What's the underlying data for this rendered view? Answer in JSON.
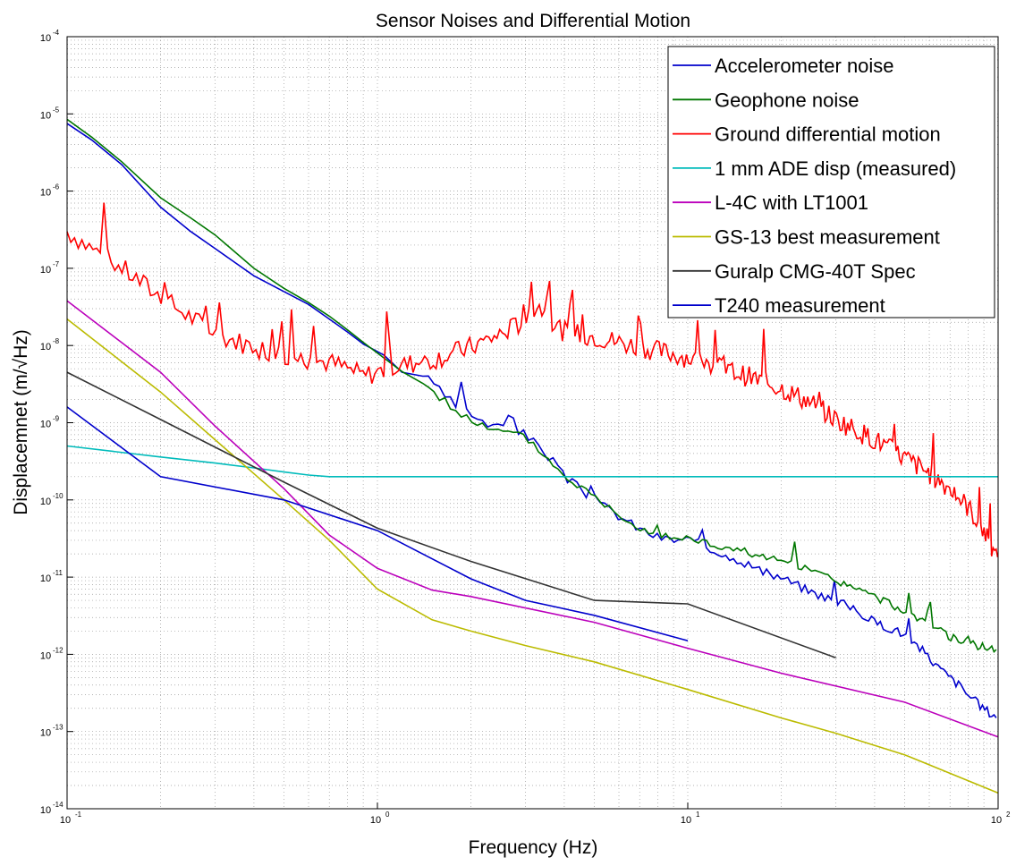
{
  "chart_data": {
    "type": "line",
    "title": "Sensor Noises and Differential Motion",
    "xlabel": "Frequency (Hz)",
    "ylabel": "Displacemnet (m/√Hz)",
    "xscale": "log",
    "yscale": "log",
    "xlim": [
      0.1,
      100
    ],
    "ylim": [
      1e-14,
      0.0001
    ],
    "grid": "major and minor, dotted",
    "legend_position": "top-right",
    "x_ticks": [
      {
        "value": 0.1,
        "base": "10",
        "exp": "-1"
      },
      {
        "value": 1,
        "base": "10",
        "exp": "0"
      },
      {
        "value": 10,
        "base": "10",
        "exp": "1"
      },
      {
        "value": 100,
        "base": "10",
        "exp": "2"
      }
    ],
    "y_ticks": [
      {
        "value": 1e-14,
        "base": "10",
        "exp": "-14"
      },
      {
        "value": 1e-13,
        "base": "10",
        "exp": "-13"
      },
      {
        "value": 1e-12,
        "base": "10",
        "exp": "-12"
      },
      {
        "value": 1e-11,
        "base": "10",
        "exp": "-11"
      },
      {
        "value": 1e-10,
        "base": "10",
        "exp": "-10"
      },
      {
        "value": 1e-09,
        "base": "10",
        "exp": "-9"
      },
      {
        "value": 1e-08,
        "base": "10",
        "exp": "-8"
      },
      {
        "value": 1e-07,
        "base": "10",
        "exp": "-7"
      },
      {
        "value": 1e-06,
        "base": "10",
        "exp": "-6"
      },
      {
        "value": 1e-05,
        "base": "10",
        "exp": "-5"
      },
      {
        "value": 0.0001,
        "base": "10",
        "exp": "-4"
      }
    ],
    "series": [
      {
        "name": "Accelerometer noise",
        "color": "#0000cc",
        "x": [
          0.1,
          0.12,
          0.15,
          0.2,
          0.25,
          0.3,
          0.4,
          0.5,
          0.6,
          0.7,
          0.8,
          0.9,
          1.05,
          1.2,
          1.4,
          1.6,
          1.8,
          2.0,
          2.3,
          2.6,
          3.0,
          3.3,
          3.6,
          4.0,
          4.5,
          5.0,
          6.0,
          7.0,
          8.0,
          9.0,
          10,
          12,
          15,
          18,
          20,
          25,
          30,
          35,
          40,
          45,
          50,
          55,
          60,
          65,
          70,
          75,
          80,
          85,
          90,
          95,
          100
        ],
        "y": [
          7.5e-06,
          4.6e-06,
          2.2e-06,
          6.2e-07,
          3e-07,
          1.8e-07,
          8e-08,
          5e-08,
          3.4e-08,
          2.2e-08,
          1.5e-08,
          1.05e-08,
          7.5e-09,
          4.5e-09,
          4.2e-09,
          2.5e-09,
          1.6e-09,
          1.35e-09,
          8.8e-10,
          9.2e-10,
          7e-10,
          5e-10,
          3.5e-10,
          2e-10,
          1.4e-10,
          1e-10,
          6.2e-11,
          4.2e-11,
          3.3e-11,
          3e-11,
          3.1e-11,
          2.3e-11,
          1.6e-11,
          1.1e-11,
          1e-11,
          6.4e-12,
          5e-12,
          3.7e-12,
          2.6e-12,
          2.2e-12,
          1.8e-12,
          1.3e-12,
          9e-13,
          6.5e-13,
          5e-13,
          4e-13,
          3e-13,
          2.4e-13,
          2e-13,
          1.7e-13,
          1.6e-13
        ]
      },
      {
        "name": "Geophone noise",
        "color": "#007700",
        "x": [
          0.1,
          0.12,
          0.15,
          0.2,
          0.25,
          0.3,
          0.4,
          0.5,
          0.6,
          0.7,
          0.8,
          0.9,
          1.0,
          1.2,
          1.4,
          1.6,
          1.8,
          2.0,
          2.3,
          2.6,
          3.0,
          3.3,
          3.6,
          4.0,
          4.5,
          5.0,
          6.0,
          7.0,
          8.0,
          9.0,
          10,
          12,
          15,
          18,
          20,
          25,
          30,
          35,
          40,
          45,
          50,
          55,
          60,
          65,
          70,
          75,
          80,
          85,
          90,
          95,
          100
        ],
        "y": [
          8.5e-06,
          5e-06,
          2.4e-06,
          8.2e-07,
          4.5e-07,
          2.7e-07,
          1e-07,
          5.5e-08,
          3.6e-08,
          2.4e-08,
          1.6e-08,
          1.1e-08,
          8e-09,
          4.6e-09,
          3.3e-09,
          2.1e-09,
          1.4e-09,
          1.1e-09,
          8e-10,
          7.5e-10,
          6.5e-10,
          4.5e-10,
          3.2e-10,
          2e-10,
          1.5e-10,
          1.1e-10,
          6.5e-11,
          4.4e-11,
          3.6e-11,
          3.2e-11,
          3.2e-11,
          2.6e-11,
          2.2e-11,
          1.8e-11,
          1.6e-11,
          1.2e-11,
          9e-12,
          7e-12,
          5.5e-12,
          4.5e-12,
          3.5e-12,
          3e-12,
          2.5e-12,
          2e-12,
          1.7e-12,
          1.5e-12,
          1.4e-12,
          1.3e-12,
          1.25e-12,
          1.2e-12,
          1.2e-12
        ]
      },
      {
        "name": "Ground differential motion",
        "color": "#ff0000",
        "x": [
          0.1,
          0.12,
          0.15,
          0.2,
          0.25,
          0.3,
          0.4,
          0.5,
          0.6,
          0.7,
          0.8,
          0.9,
          1.0,
          1.2,
          1.5,
          2.0,
          2.5,
          3.0,
          3.3,
          3.5,
          4.0,
          5.0,
          6.0,
          7.0,
          8.0,
          10,
          12,
          15,
          20,
          25,
          30,
          40,
          50,
          60,
          70,
          80,
          90,
          100
        ],
        "y": [
          3e-07,
          1.8e-07,
          1e-07,
          4.2e-08,
          2.3e-08,
          1.4e-08,
          9.5e-09,
          7.5e-09,
          6.5e-09,
          6e-09,
          5e-09,
          4e-09,
          4.5e-09,
          5.5e-09,
          6.5e-09,
          9.5e-09,
          1.4e-08,
          2.1e-08,
          3.5e-08,
          2.3e-08,
          1.5e-08,
          1.3e-08,
          1.1e-08,
          9.5e-09,
          8.5e-09,
          7e-09,
          5.5e-09,
          4.2e-09,
          2.8e-09,
          1.8e-09,
          1.1e-09,
          6e-10,
          3.5e-10,
          2.2e-10,
          1.4e-10,
          8e-11,
          4e-11,
          1.5e-11
        ]
      },
      {
        "name": "1 mm ADE disp (measured)",
        "color": "#00bbbb",
        "x": [
          0.1,
          0.2,
          0.3,
          0.4,
          0.5,
          0.6,
          0.7,
          1,
          10,
          100
        ],
        "y": [
          5e-10,
          3.6e-10,
          3e-10,
          2.6e-10,
          2.3e-10,
          2.1e-10,
          2e-10,
          2e-10,
          2e-10,
          2e-10
        ]
      },
      {
        "name": "L-4C with LT1001",
        "color": "#bb00bb",
        "x": [
          0.1,
          0.2,
          0.3,
          0.5,
          0.7,
          1.0,
          1.5,
          2.0,
          5.0,
          10,
          20,
          50,
          100
        ],
        "y": [
          3.8e-08,
          4.5e-09,
          9e-10,
          1.4e-10,
          3.5e-11,
          1.3e-11,
          6.8e-12,
          5.6e-12,
          2.6e-12,
          1.2e-12,
          5.7e-13,
          2.4e-13,
          8.5e-14
        ]
      },
      {
        "name": "GS-13 best measurement",
        "color": "#bbbb00",
        "x": [
          0.1,
          0.2,
          0.3,
          0.5,
          0.7,
          1.0,
          1.5,
          2.0,
          3.0,
          5.0,
          10,
          20,
          30,
          50,
          100
        ],
        "y": [
          2.2e-08,
          2.5e-09,
          6e-10,
          1e-10,
          3e-11,
          7e-12,
          2.8e-12,
          2e-12,
          1.3e-12,
          8e-13,
          3.5e-13,
          1.5e-13,
          9.5e-14,
          5e-14,
          1.6e-14
        ]
      },
      {
        "name": "Guralp CMG-40T Spec",
        "color": "#333333",
        "x": [
          0.1,
          0.2,
          0.5,
          1.0,
          2.0,
          5.0,
          10,
          30
        ],
        "y": [
          4.5e-09,
          1.1e-09,
          1.7e-10,
          4.3e-11,
          1.6e-11,
          5e-12,
          4.5e-12,
          9e-13
        ]
      },
      {
        "name": "T240 measurement",
        "color": "#0000cc",
        "x": [
          0.1,
          0.2,
          0.5,
          1.0,
          2.0,
          3.0,
          5.0,
          10
        ],
        "y": [
          1.6e-09,
          2e-10,
          1e-10,
          4e-11,
          9.5e-12,
          5e-12,
          3.2e-12,
          1.5e-12
        ]
      }
    ]
  }
}
